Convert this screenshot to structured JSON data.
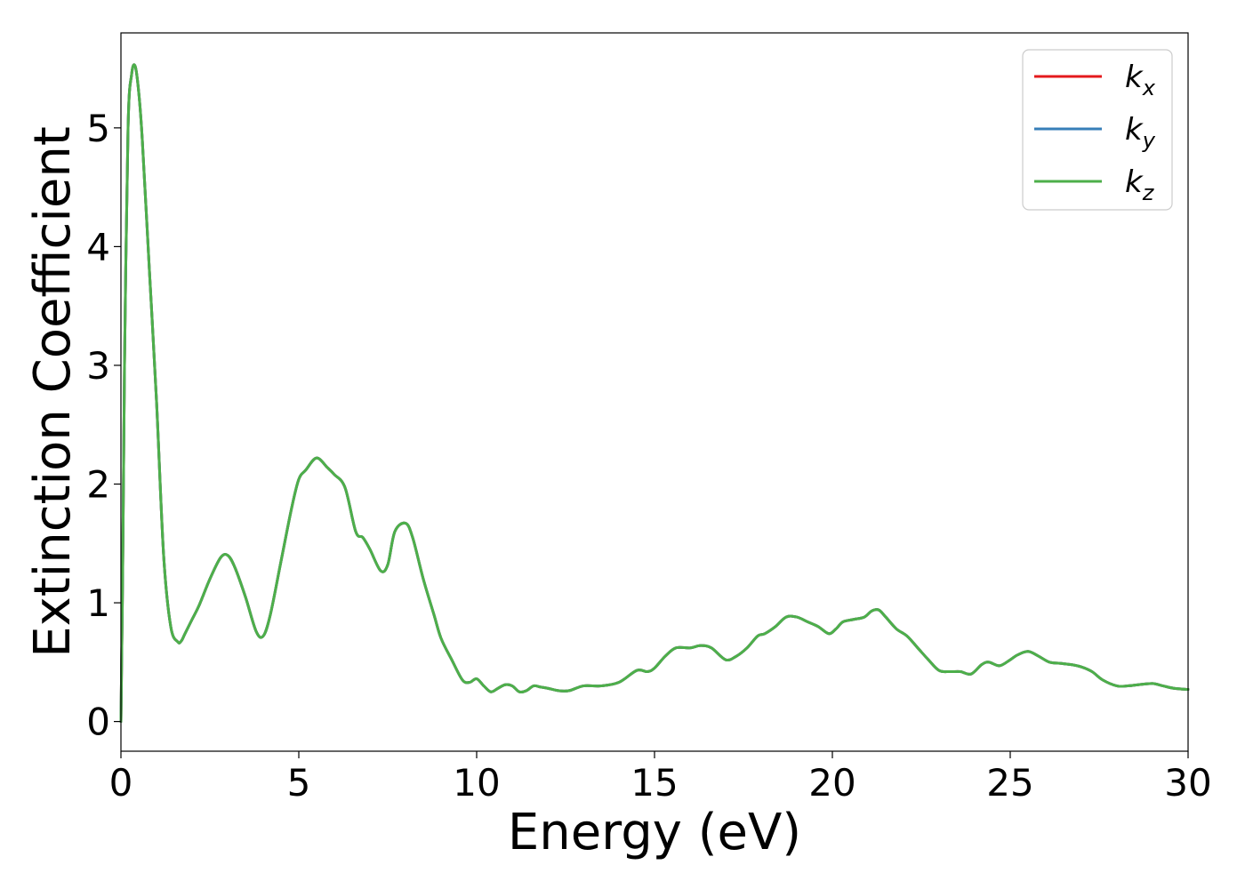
{
  "chart_data": {
    "type": "line",
    "title": "",
    "xlabel": "Energy (eV)",
    "ylabel": "Extinction Coefficient",
    "xlim": [
      0,
      30
    ],
    "ylim": [
      -0.25,
      5.8
    ],
    "xticks": [
      0,
      5,
      10,
      15,
      20,
      25,
      30
    ],
    "yticks": [
      0,
      1,
      2,
      3,
      4,
      5
    ],
    "grid": false,
    "legend_position": "top-right",
    "series": [
      {
        "name_base": "k",
        "name_sub": "x",
        "color": "#e41a1c"
      },
      {
        "name_base": "k",
        "name_sub": "y",
        "color": "#377eb8"
      },
      {
        "name_base": "k",
        "name_sub": "z",
        "color": "#4daf4a"
      }
    ],
    "x": [
      0,
      0.05,
      0.1,
      0.2,
      0.3,
      0.4,
      0.5,
      0.6,
      0.8,
      1.0,
      1.2,
      1.4,
      1.6,
      1.7,
      1.8,
      2.0,
      2.2,
      2.5,
      2.8,
      3.0,
      3.2,
      3.5,
      3.8,
      4.0,
      4.2,
      4.5,
      4.8,
      5.0,
      5.2,
      5.5,
      5.8,
      6.0,
      6.3,
      6.6,
      6.8,
      7.0,
      7.3,
      7.5,
      7.7,
      8.0,
      8.2,
      8.5,
      8.8,
      9.0,
      9.3,
      9.6,
      9.8,
      10.0,
      10.2,
      10.4,
      10.6,
      10.8,
      11.0,
      11.2,
      11.4,
      11.6,
      11.8,
      12.0,
      12.3,
      12.6,
      13.0,
      13.5,
      14.0,
      14.5,
      14.8,
      15.0,
      15.3,
      15.6,
      16.0,
      16.3,
      16.6,
      17.0,
      17.3,
      17.6,
      17.9,
      18.1,
      18.4,
      18.7,
      19.0,
      19.3,
      19.6,
      19.9,
      20.1,
      20.3,
      20.6,
      20.9,
      21.1,
      21.3,
      21.5,
      21.8,
      22.1,
      22.4,
      22.7,
      23.0,
      23.3,
      23.6,
      23.9,
      24.2,
      24.4,
      24.7,
      25.0,
      25.2,
      25.5,
      25.8,
      26.1,
      26.4,
      26.7,
      27.0,
      27.3,
      27.6,
      28.0,
      28.3,
      28.6,
      29.0,
      29.3,
      29.6,
      30.0
    ],
    "y": [
      0.0,
      1.3,
      3.0,
      5.0,
      5.45,
      5.52,
      5.3,
      4.9,
      3.8,
      2.7,
      1.4,
      0.8,
      0.67,
      0.68,
      0.74,
      0.86,
      0.98,
      1.2,
      1.38,
      1.4,
      1.3,
      1.05,
      0.76,
      0.72,
      0.9,
      1.35,
      1.8,
      2.04,
      2.12,
      2.22,
      2.14,
      2.08,
      1.97,
      1.6,
      1.55,
      1.45,
      1.27,
      1.32,
      1.6,
      1.67,
      1.55,
      1.2,
      0.9,
      0.7,
      0.52,
      0.35,
      0.33,
      0.36,
      0.3,
      0.25,
      0.28,
      0.31,
      0.3,
      0.25,
      0.26,
      0.3,
      0.29,
      0.28,
      0.26,
      0.26,
      0.3,
      0.3,
      0.33,
      0.43,
      0.42,
      0.45,
      0.55,
      0.62,
      0.62,
      0.64,
      0.62,
      0.52,
      0.55,
      0.62,
      0.72,
      0.74,
      0.8,
      0.88,
      0.88,
      0.84,
      0.8,
      0.74,
      0.78,
      0.84,
      0.86,
      0.88,
      0.93,
      0.94,
      0.88,
      0.78,
      0.72,
      0.62,
      0.52,
      0.43,
      0.42,
      0.42,
      0.4,
      0.48,
      0.5,
      0.47,
      0.52,
      0.56,
      0.59,
      0.55,
      0.5,
      0.49,
      0.48,
      0.46,
      0.42,
      0.35,
      0.3,
      0.3,
      0.31,
      0.32,
      0.3,
      0.28,
      0.27
    ]
  }
}
